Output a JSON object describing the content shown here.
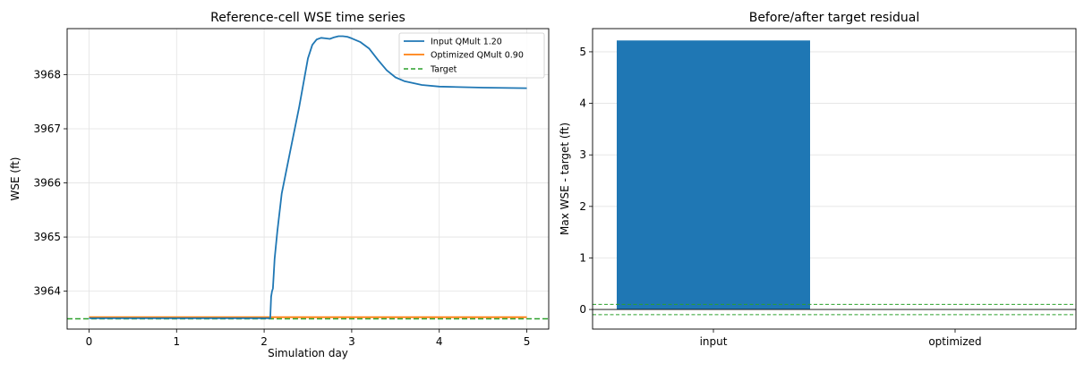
{
  "chart_data": [
    {
      "type": "line",
      "title": "Reference-cell WSE time series",
      "xlabel": "Simulation day",
      "ylabel": "WSE (ft)",
      "xlim": [
        -0.25,
        5.25
      ],
      "ylim": [
        3963.3,
        3968.85
      ],
      "xticks": [
        0,
        1,
        2,
        3,
        4,
        5
      ],
      "xtick_labels": [
        "0",
        "1",
        "2",
        "3",
        "4",
        "5"
      ],
      "yticks": [
        3964,
        3965,
        3966,
        3967,
        3968
      ],
      "ytick_labels": [
        "3964",
        "3965",
        "3966",
        "3967",
        "3968"
      ],
      "grid": true,
      "legend_position": "upper right",
      "series": [
        {
          "name": "Input QMult 1.20",
          "color": "#1f77b4",
          "style": "solid",
          "x": [
            0,
            2.07,
            2.08,
            2.09,
            2.1,
            2.12,
            2.15,
            2.2,
            2.3,
            2.4,
            2.5,
            2.55,
            2.6,
            2.65,
            2.7,
            2.75,
            2.8,
            2.85,
            2.9,
            2.95,
            3.0,
            3.1,
            3.2,
            3.3,
            3.4,
            3.5,
            3.6,
            3.8,
            4.0,
            4.5,
            5.0
          ],
          "y": [
            3963.5,
            3963.5,
            3963.9,
            3964.0,
            3964.05,
            3964.6,
            3965.1,
            3965.8,
            3966.6,
            3967.4,
            3968.3,
            3968.55,
            3968.65,
            3968.68,
            3968.67,
            3968.66,
            3968.69,
            3968.71,
            3968.71,
            3968.7,
            3968.67,
            3968.6,
            3968.48,
            3968.27,
            3968.08,
            3967.95,
            3967.88,
            3967.81,
            3967.78,
            3967.76,
            3967.75
          ]
        },
        {
          "name": "Optimized QMult 0.90",
          "color": "#ff7f0e",
          "style": "solid",
          "x": [
            0,
            5
          ],
          "y": [
            3963.52,
            3963.52
          ]
        }
      ],
      "hlines": [
        {
          "name": "Target",
          "y": 3963.49,
          "color": "#2ca02c",
          "style": "dashed"
        }
      ]
    },
    {
      "type": "bar",
      "title": "Before/after target residual",
      "xlabel": "",
      "ylabel": "Max WSE - target (ft)",
      "categories": [
        "input",
        "optimized"
      ],
      "values": [
        5.22,
        0.0
      ],
      "color": "#1f77b4",
      "ylim": [
        -0.38,
        5.45
      ],
      "yticks": [
        0,
        1,
        2,
        3,
        4,
        5
      ],
      "ytick_labels": [
        "0",
        "1",
        "2",
        "3",
        "4",
        "5"
      ],
      "grid": true,
      "hlines": [
        {
          "y": 0,
          "color": "#000000",
          "style": "solid"
        },
        {
          "y": 0.1,
          "color": "#2ca02c",
          "style": "dashed"
        },
        {
          "y": -0.1,
          "color": "#2ca02c",
          "style": "dashed"
        }
      ]
    }
  ]
}
